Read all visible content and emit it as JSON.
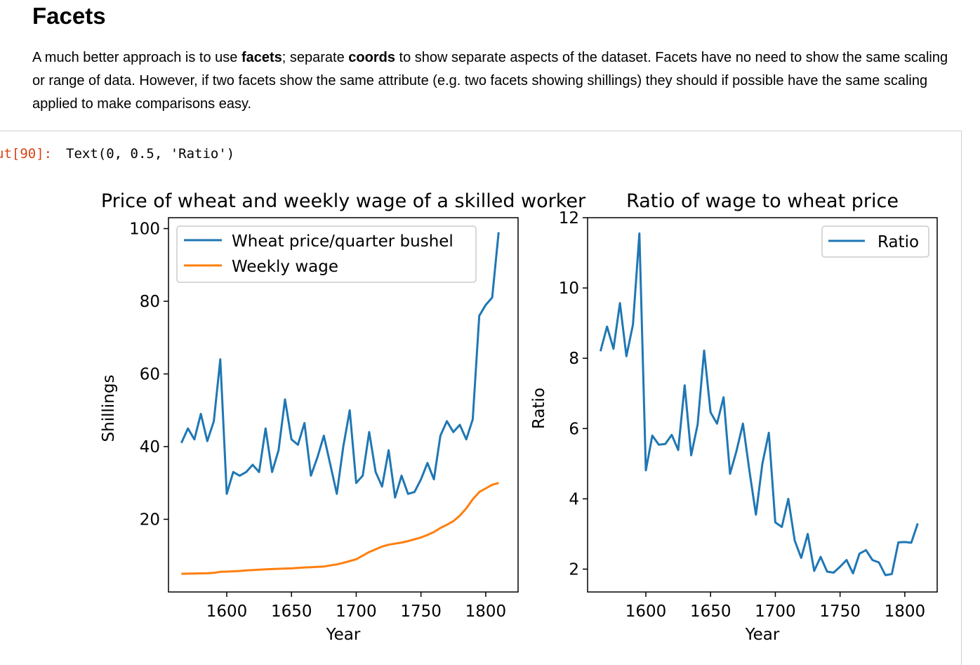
{
  "heading": "Facets",
  "para": {
    "p1": "A much better approach is to use ",
    "b1": "facets",
    "p2": "; separate ",
    "b2": "coords",
    "p3": " to show separate aspects of the dataset. Facets have no need to show the same scaling or range of data. However, if two facets show the same attribute (e.g. two facets showing shillings) they should if possible have the same scaling applied to make comparisons easy."
  },
  "cell": {
    "prompt": "ut[90]:",
    "output": "Text(0, 0.5, 'Ratio')"
  },
  "chart_data": [
    {
      "type": "line",
      "title": "Price of wheat and weekly wage of a skilled worker",
      "xlabel": "Year",
      "ylabel": "Shillings",
      "xlim": [
        1555,
        1825
      ],
      "ylim": [
        0,
        103
      ],
      "xticks": [
        1600,
        1650,
        1700,
        1750,
        1800
      ],
      "yticks": [
        20,
        40,
        60,
        80,
        100
      ],
      "legend": "top-left",
      "grid": false,
      "x": [
        1565,
        1570,
        1575,
        1580,
        1585,
        1590,
        1595,
        1600,
        1605,
        1610,
        1615,
        1620,
        1625,
        1630,
        1635,
        1640,
        1645,
        1650,
        1655,
        1660,
        1665,
        1670,
        1675,
        1680,
        1685,
        1690,
        1695,
        1700,
        1705,
        1710,
        1715,
        1720,
        1725,
        1730,
        1735,
        1740,
        1745,
        1750,
        1755,
        1760,
        1765,
        1770,
        1775,
        1780,
        1785,
        1790,
        1795,
        1800,
        1805,
        1810
      ],
      "series": [
        {
          "name": "Wheat price/quarter bushel",
          "color": "#1f77b4",
          "values": [
            41,
            45,
            42,
            49,
            41.5,
            47,
            64,
            27,
            33,
            32,
            33,
            35,
            33,
            45,
            33,
            39,
            53,
            42,
            40.5,
            46.5,
            32,
            37,
            43,
            35,
            27,
            40,
            50,
            30,
            32,
            44,
            33,
            29,
            39,
            26,
            32,
            27,
            27.5,
            31,
            35.5,
            31,
            43,
            47,
            44,
            46,
            42,
            47.5,
            76,
            79,
            81,
            99
          ]
        },
        {
          "name": "Weekly wage",
          "color": "#ff7f0e",
          "values": [
            5,
            5.05,
            5.08,
            5.12,
            5.15,
            5.25,
            5.54,
            5.61,
            5.69,
            5.78,
            5.94,
            6.01,
            6.12,
            6.22,
            6.3,
            6.37,
            6.45,
            6.5,
            6.6,
            6.75,
            6.8,
            6.9,
            7,
            7.3,
            7.6,
            8,
            8.5,
            9,
            10,
            11,
            11.75,
            12.5,
            13,
            13.3,
            13.6,
            14,
            14.5,
            15,
            15.7,
            16.5,
            17.6,
            18.5,
            19.5,
            21,
            23,
            25.5,
            27.5,
            28.5,
            29.5,
            30
          ]
        }
      ]
    },
    {
      "type": "line",
      "title": "Ratio of wage to wheat price",
      "xlabel": "Year",
      "ylabel": "Ratio",
      "xlim": [
        1555,
        1825
      ],
      "ylim": [
        1.35,
        12
      ],
      "xticks": [
        1600,
        1650,
        1700,
        1750,
        1800
      ],
      "yticks": [
        2,
        4,
        6,
        8,
        10,
        12
      ],
      "legend": "top-right",
      "grid": false,
      "x": [
        1565,
        1570,
        1575,
        1580,
        1585,
        1590,
        1595,
        1600,
        1605,
        1610,
        1615,
        1620,
        1625,
        1630,
        1635,
        1640,
        1645,
        1650,
        1655,
        1660,
        1665,
        1670,
        1675,
        1680,
        1685,
        1690,
        1695,
        1700,
        1705,
        1710,
        1715,
        1720,
        1725,
        1730,
        1735,
        1740,
        1745,
        1750,
        1755,
        1760,
        1765,
        1770,
        1775,
        1780,
        1785,
        1790,
        1795,
        1800,
        1805,
        1810
      ],
      "series": [
        {
          "name": "Ratio",
          "color": "#1f77b4",
          "values": [
            8.2,
            8.9,
            8.27,
            9.57,
            8.06,
            8.95,
            11.55,
            4.81,
            5.8,
            5.54,
            5.56,
            5.82,
            5.39,
            7.23,
            5.24,
            6.12,
            8.22,
            6.46,
            6.14,
            6.89,
            4.71,
            5.36,
            6.14,
            4.79,
            3.55,
            5,
            5.88,
            3.33,
            3.2,
            4,
            2.81,
            2.32,
            3,
            1.95,
            2.35,
            1.93,
            1.9,
            2.07,
            2.26,
            1.88,
            2.44,
            2.54,
            2.26,
            2.19,
            1.83,
            1.86,
            2.76,
            2.77,
            2.75,
            3.3
          ]
        }
      ]
    }
  ]
}
